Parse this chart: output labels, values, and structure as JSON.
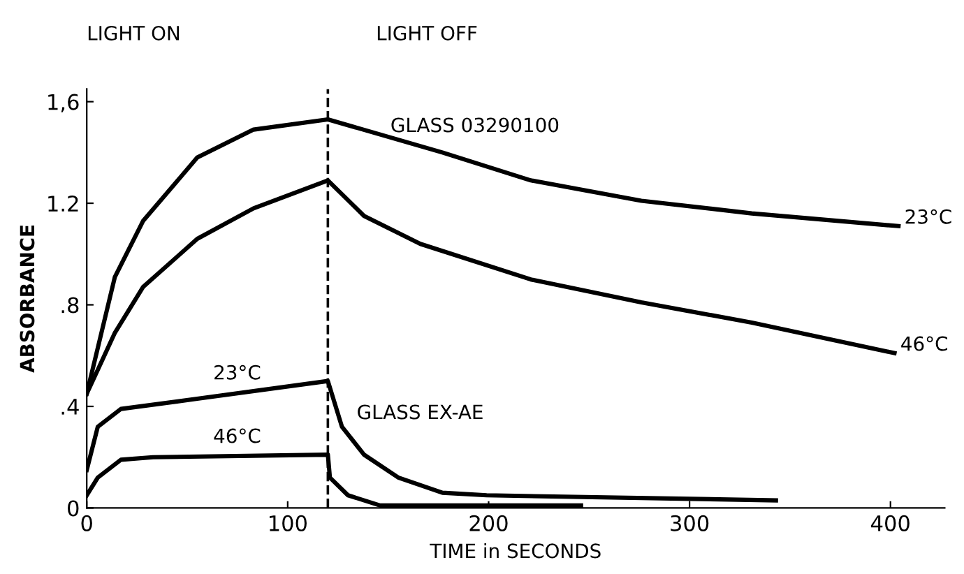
{
  "chart_data": {
    "type": "line",
    "xlabel": "TIME in SECONDS",
    "ylabel": "ABSORBANCE",
    "xlim": [
      0,
      427
    ],
    "xticks": [
      0,
      100,
      200,
      300,
      400
    ],
    "ylim": [
      0,
      1.65
    ],
    "yticks": [
      0,
      {
        "value": 0.4,
        "label": ".4"
      },
      {
        "value": 0.8,
        "label": ".8"
      },
      {
        "value": 1.2,
        "label": "1.2"
      },
      {
        "value": 1.6,
        "label": "1,6"
      }
    ],
    "grid": false,
    "legend": false,
    "marker": "none",
    "line_style": "solid",
    "series": [
      {
        "color": "#000000",
        "x": [
          0,
          14,
          28,
          55,
          83,
          120,
          177,
          221,
          276,
          331,
          404
        ],
        "values": [
          0.45,
          0.91,
          1.13,
          1.38,
          1.49,
          1.53,
          1.4,
          1.29,
          1.21,
          1.16,
          1.11
        ]
      },
      {
        "color": "#000000",
        "x": [
          0,
          14,
          28,
          55,
          83,
          120,
          138,
          166,
          221,
          276,
          331,
          402
        ],
        "values": [
          0.45,
          0.69,
          0.87,
          1.06,
          1.18,
          1.29,
          1.15,
          1.04,
          0.9,
          0.81,
          0.73,
          0.61
        ]
      },
      {
        "color": "#000000",
        "x": [
          0,
          5.5,
          17,
          55,
          120,
          127,
          138,
          155,
          177,
          199,
          343
        ],
        "values": [
          0.15,
          0.32,
          0.39,
          0.43,
          0.5,
          0.32,
          0.21,
          0.12,
          0.06,
          0.05,
          0.03
        ]
      },
      {
        "color": "#000000",
        "x": [
          0,
          5.5,
          17,
          33,
          120,
          121,
          130,
          146,
          246
        ],
        "values": [
          0.05,
          0.12,
          0.19,
          0.2,
          0.21,
          0.12,
          0.05,
          0.01,
          0.01
        ]
      }
    ],
    "ref_lines": [
      {
        "axis": "x",
        "value": 120,
        "color": "#000000",
        "line_style": "dashed"
      }
    ],
    "annotations": [
      "LIGHT ON",
      "LIGHT OFF",
      "GLASS 03290100",
      {
        "text": "23°C",
        "x": 404,
        "y": 1.11
      },
      {
        "text": "46°C",
        "x": 402,
        "y": 0.61
      },
      {
        "text": "23°C",
        "x": 60,
        "y": 0.46
      },
      {
        "text": "46°C",
        "x": 60,
        "y": 0.21
      },
      "GLASS EX-AE"
    ]
  }
}
